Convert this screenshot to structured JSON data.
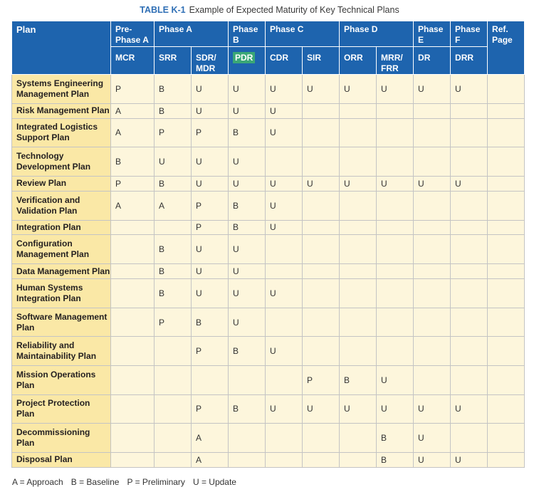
{
  "caption": {
    "label": "TABLE K-1",
    "text": "Example of Expected Maturity of Key Technical Plans"
  },
  "header": {
    "plan": "Plan",
    "ref_page": "Ref. Page",
    "phases": [
      {
        "label": "Pre-Phase A",
        "span": 1
      },
      {
        "label": "Phase A",
        "span": 2
      },
      {
        "label": "Phase B",
        "span": 1
      },
      {
        "label": "Phase C",
        "span": 2
      },
      {
        "label": "Phase D",
        "span": 2
      },
      {
        "label": "Phase E",
        "span": 1
      },
      {
        "label": "Phase F",
        "span": 1
      }
    ],
    "reviews": [
      "MCR",
      "SRR",
      "SDR/ MDR",
      "PDR",
      "CDR",
      "SIR",
      "ORR",
      "MRR/ FRR",
      "DR",
      "DRR"
    ],
    "highlighted_review": "PDR"
  },
  "rows": [
    {
      "plan": "Systems Engineering Management Plan",
      "values": [
        "P",
        "B",
        "U",
        "U",
        "U",
        "U",
        "U",
        "U",
        "U",
        "U"
      ]
    },
    {
      "plan": "Risk Management Plan",
      "values": [
        "A",
        "B",
        "U",
        "U",
        "U",
        "",
        "",
        "",
        "",
        ""
      ]
    },
    {
      "plan": "Integrated Logistics Support Plan",
      "values": [
        "A",
        "P",
        "P",
        "B",
        "U",
        "",
        "",
        "",
        "",
        ""
      ]
    },
    {
      "plan": "Technology Development Plan",
      "values": [
        "B",
        "U",
        "U",
        "U",
        "",
        "",
        "",
        "",
        "",
        ""
      ]
    },
    {
      "plan": "Review Plan",
      "values": [
        "P",
        "B",
        "U",
        "U",
        "U",
        "U",
        "U",
        "U",
        "U",
        "U"
      ]
    },
    {
      "plan": "Verification and Validation Plan",
      "values": [
        "A",
        "A",
        "P",
        "B",
        "U",
        "",
        "",
        "",
        "",
        ""
      ]
    },
    {
      "plan": "Integration Plan",
      "values": [
        "",
        "",
        "P",
        "B",
        "U",
        "",
        "",
        "",
        "",
        ""
      ]
    },
    {
      "plan": "Configuration Management Plan",
      "values": [
        "",
        "B",
        "U",
        "U",
        "",
        "",
        "",
        "",
        "",
        ""
      ]
    },
    {
      "plan": "Data Management Plan",
      "values": [
        "",
        "B",
        "U",
        "U",
        "",
        "",
        "",
        "",
        "",
        ""
      ]
    },
    {
      "plan": "Human Systems Integration Plan",
      "values": [
        "",
        "B",
        "U",
        "U",
        "U",
        "",
        "",
        "",
        "",
        ""
      ]
    },
    {
      "plan": "Software Management Plan",
      "values": [
        "",
        "P",
        "B",
        "U",
        "",
        "",
        "",
        "",
        "",
        ""
      ]
    },
    {
      "plan": "Reliability and Maintainability Plan",
      "values": [
        "",
        "",
        "P",
        "B",
        "U",
        "",
        "",
        "",
        "",
        ""
      ]
    },
    {
      "plan": "Mission Operations Plan",
      "values": [
        "",
        "",
        "",
        "",
        "",
        "P",
        "B",
        "U",
        "",
        ""
      ]
    },
    {
      "plan": "Project Protection Plan",
      "values": [
        "",
        "",
        "P",
        "B",
        "U",
        "U",
        "U",
        "U",
        "U",
        "U"
      ]
    },
    {
      "plan": "Decommissioning Plan",
      "values": [
        "",
        "",
        "A",
        "",
        "",
        "",
        "",
        "B",
        "U",
        ""
      ]
    },
    {
      "plan": "Disposal Plan",
      "values": [
        "",
        "",
        "A",
        "",
        "",
        "",
        "",
        "B",
        "U",
        "U"
      ]
    }
  ],
  "legend": [
    "A = Approach",
    "B = Baseline",
    "P = Preliminary",
    "U = Update"
  ]
}
